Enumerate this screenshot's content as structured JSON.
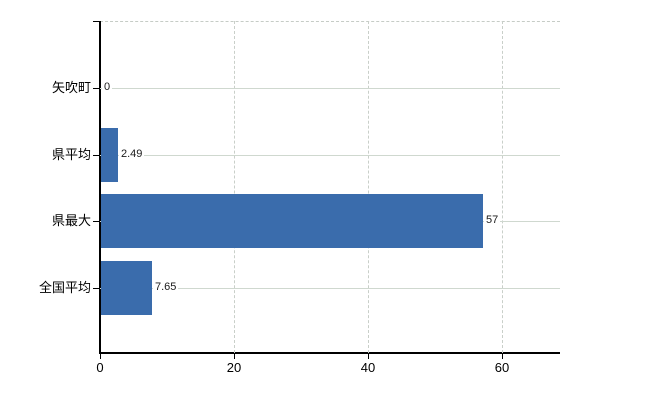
{
  "chart_data": {
    "type": "bar",
    "orientation": "horizontal",
    "title": "",
    "xlabel": "",
    "ylabel": "",
    "categories": [
      "矢吹町",
      "県平均",
      "県最大",
      "全国平均"
    ],
    "values": [
      0,
      2.49,
      57,
      7.65
    ],
    "value_labels": [
      "0",
      "2.49",
      "57",
      "7.65"
    ],
    "x_ticks": [
      0,
      20,
      40,
      60
    ],
    "x_tick_labels": [
      "0",
      "20",
      "40",
      "60"
    ],
    "xlim": [
      0,
      68.6
    ],
    "grid": true,
    "legend": false,
    "bar_color": "#3a6cac",
    "h_grid_color": "#cfd8cf",
    "v_grid_color": "#c9cfc9",
    "axis_color": "#000000",
    "background_color": "#ffffff"
  }
}
